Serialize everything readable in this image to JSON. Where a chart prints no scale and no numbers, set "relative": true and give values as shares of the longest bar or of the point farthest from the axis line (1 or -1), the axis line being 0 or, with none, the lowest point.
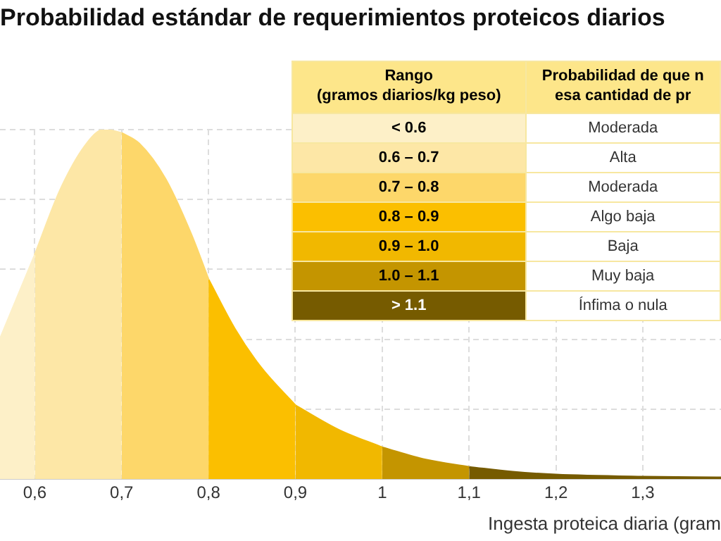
{
  "chart_data": {
    "type": "area",
    "title": "Probabilidad estándar de requerimientos proteicos diarios",
    "xlabel": "Ingesta proteica diaria (gram",
    "relative": true,
    "xlim": [
      0.56,
      1.39
    ],
    "xticks": [
      {
        "value": 0.6,
        "label": "0,6"
      },
      {
        "value": 0.7,
        "label": "0,7"
      },
      {
        "value": 0.8,
        "label": "0,8"
      },
      {
        "value": 0.9,
        "label": "0,9"
      },
      {
        "value": 1,
        "label": "1"
      },
      {
        "value": 1.1,
        "label": "1,1"
      },
      {
        "value": 1.2,
        "label": "1,2"
      },
      {
        "value": 1.3,
        "label": "1,3"
      }
    ],
    "grid": true,
    "legend": "top right",
    "legend_title": "Rango\n(gramos diarios/kg peso)",
    "series": [
      {
        "name": "< 0.6",
        "color": "#fdf0c8",
        "x": [
          0.56,
          0.58,
          0.6
        ],
        "values": [
          0.4,
          0.52,
          0.64
        ]
      },
      {
        "name": "0.6 – 0.7",
        "color": "#fde7a6",
        "x": [
          0.6,
          0.63,
          0.66,
          0.68,
          0.7
        ],
        "values": [
          0.64,
          0.83,
          0.96,
          1.0,
          0.99
        ]
      },
      {
        "name": "0.7 – 0.8",
        "color": "#fdd76a",
        "x": [
          0.7,
          0.72,
          0.75,
          0.78,
          0.8
        ],
        "values": [
          0.99,
          0.96,
          0.86,
          0.7,
          0.57
        ]
      },
      {
        "name": "0.8 – 0.9",
        "color": "#fbbf00",
        "x": [
          0.8,
          0.83,
          0.86,
          0.9
        ],
        "values": [
          0.57,
          0.43,
          0.32,
          0.21
        ]
      },
      {
        "name": "0.9 – 1.0",
        "color": "#f1b800",
        "x": [
          0.9,
          0.95,
          1.0
        ],
        "values": [
          0.21,
          0.14,
          0.09
        ]
      },
      {
        "name": "1.0 – 1.1",
        "color": "#c49500",
        "x": [
          1.0,
          1.05,
          1.1
        ],
        "values": [
          0.09,
          0.055,
          0.034
        ]
      },
      {
        "name": "> 1.1",
        "color": "#765b00",
        "x": [
          1.1,
          1.15,
          1.2,
          1.3,
          1.39
        ],
        "values": [
          0.034,
          0.02,
          0.012,
          0.006,
          0.004
        ]
      }
    ],
    "annotations": [
      "Probabilidad de que n\nesa cantidad de pr",
      "Moderada",
      "Alta",
      "Moderada",
      "Algo baja",
      "Baja",
      "Muy baja",
      "Ínfima o nula"
    ]
  }
}
